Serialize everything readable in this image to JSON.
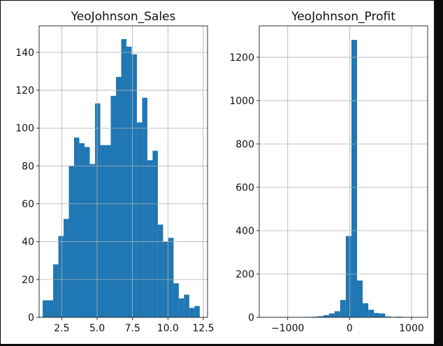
{
  "colors": {
    "bar": "#1f77b4",
    "grid": "#b0b0b0",
    "axis": "#000000",
    "figure_background": "#ffffff",
    "window_background": "#0b0b0b"
  },
  "chart_data": [
    {
      "type": "bar",
      "title": "YeoJohnson_Sales",
      "xlabel": "",
      "ylabel": "",
      "grid": true,
      "xlim": [
        0.9,
        12.8
      ],
      "ylim": [
        0,
        154
      ],
      "xticks": [
        2.5,
        5.0,
        7.5,
        10.0,
        12.5
      ],
      "xtick_labels": [
        "2.5",
        "5.0",
        "7.5",
        "10.0",
        "12.5"
      ],
      "yticks": [
        0,
        20,
        40,
        60,
        80,
        100,
        120,
        140
      ],
      "ytick_labels": [
        "0",
        "20",
        "40",
        "60",
        "80",
        "100",
        "120",
        "140"
      ],
      "bins": {
        "edges": [
          1.15,
          1.52,
          1.89,
          2.26,
          2.63,
          3.0,
          3.37,
          3.74,
          4.11,
          4.48,
          4.85,
          5.22,
          5.59,
          5.96,
          6.33,
          6.7,
          7.07,
          7.44,
          7.81,
          8.18,
          8.55,
          8.92,
          9.29,
          9.66,
          10.03,
          10.4,
          10.77,
          11.14,
          11.51,
          11.88,
          12.25
        ],
        "counts": [
          9,
          9,
          28,
          43,
          52,
          80,
          95,
          92,
          90,
          81,
          113,
          91,
          91,
          117,
          127,
          147,
          143,
          139,
          103,
          116,
          83,
          88,
          49,
          40,
          42,
          18,
          10,
          12,
          5,
          6
        ]
      }
    },
    {
      "type": "bar",
      "title": "YeoJohnson_Profit",
      "xlabel": "",
      "ylabel": "",
      "grid": true,
      "xlim": [
        -1460,
        1260
      ],
      "ylim": [
        0,
        1345
      ],
      "xticks": [
        -1000,
        0,
        1000
      ],
      "xtick_labels": [
        "−1000",
        "0",
        "1000"
      ],
      "yticks": [
        0,
        200,
        400,
        600,
        800,
        1000,
        1200
      ],
      "ytick_labels": [
        "0",
        "200",
        "400",
        "600",
        "800",
        "1000",
        "1200"
      ],
      "bins": {
        "edges": [
          -1336,
          -1245,
          -1154,
          -1063,
          -972,
          -881,
          -790,
          -699,
          -608,
          -517,
          -426,
          -335,
          -244,
          -153,
          -62,
          29,
          120,
          211,
          302,
          393,
          484,
          575,
          666,
          757,
          848,
          939,
          1030,
          1121
        ],
        "counts": [
          1,
          0,
          0,
          0,
          1,
          0,
          1,
          2,
          3,
          5,
          10,
          18,
          28,
          80,
          375,
          1280,
          170,
          65,
          35,
          20,
          18,
          4,
          2,
          3,
          1,
          0,
          1
        ]
      }
    }
  ]
}
